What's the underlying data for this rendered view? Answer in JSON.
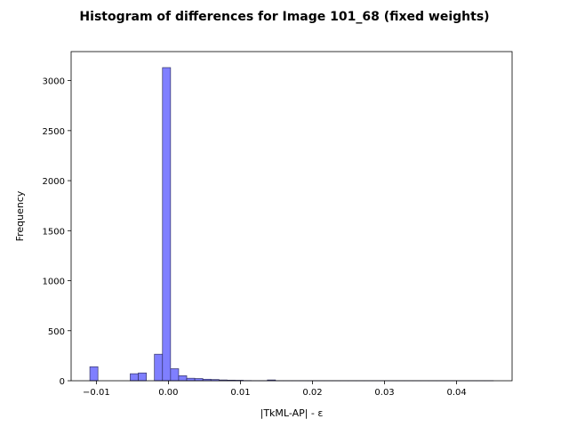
{
  "chart_data": {
    "type": "bar",
    "title": "Histogram of differences for Image 101_68 (fixed weights)",
    "xlabel": "|TkML-AP| - ε",
    "ylabel": "Frequency",
    "xlim": [
      -0.0135,
      0.0477
    ],
    "ylim": [
      0,
      3290
    ],
    "grid": false,
    "xticks": [
      -0.01,
      0.0,
      0.01,
      0.02,
      0.03,
      0.04
    ],
    "xtick_labels": [
      "−0.01",
      "0.00",
      "0.01",
      "0.02",
      "0.03",
      "0.04"
    ],
    "yticks": [
      0,
      500,
      1000,
      1500,
      2000,
      2500,
      3000
    ],
    "ytick_labels": [
      "0",
      "500",
      "1000",
      "1500",
      "2000",
      "2500",
      "3000"
    ],
    "bin_width": 0.00112,
    "bins": [
      {
        "x0": -0.0109,
        "count": 140
      },
      {
        "x0": -0.00978,
        "count": 0
      },
      {
        "x0": -0.00866,
        "count": 0
      },
      {
        "x0": -0.00754,
        "count": 0
      },
      {
        "x0": -0.00642,
        "count": 0
      },
      {
        "x0": -0.0053,
        "count": 70
      },
      {
        "x0": -0.00418,
        "count": 78
      },
      {
        "x0": -0.00306,
        "count": 0
      },
      {
        "x0": -0.00194,
        "count": 265
      },
      {
        "x0": -0.00082,
        "count": 3130
      },
      {
        "x0": 0.0003,
        "count": 120
      },
      {
        "x0": 0.00142,
        "count": 50
      },
      {
        "x0": 0.00254,
        "count": 25
      },
      {
        "x0": 0.00366,
        "count": 22
      },
      {
        "x0": 0.00478,
        "count": 15
      },
      {
        "x0": 0.0059,
        "count": 12
      },
      {
        "x0": 0.00702,
        "count": 8
      },
      {
        "x0": 0.00814,
        "count": 6
      },
      {
        "x0": 0.00926,
        "count": 5
      },
      {
        "x0": 0.01038,
        "count": 2
      },
      {
        "x0": 0.0115,
        "count": 1
      },
      {
        "x0": 0.01262,
        "count": 1
      },
      {
        "x0": 0.01374,
        "count": 8
      },
      {
        "x0": 0.01486,
        "count": 1
      },
      {
        "x0": 0.01598,
        "count": 1
      },
      {
        "x0": 0.0171,
        "count": 1
      },
      {
        "x0": 0.01822,
        "count": 1
      },
      {
        "x0": 0.01934,
        "count": 1
      },
      {
        "x0": 0.02046,
        "count": 1
      },
      {
        "x0": 0.02158,
        "count": 1
      },
      {
        "x0": 0.0227,
        "count": 1
      },
      {
        "x0": 0.02382,
        "count": 1
      },
      {
        "x0": 0.02494,
        "count": 1
      },
      {
        "x0": 0.02606,
        "count": 1
      },
      {
        "x0": 0.02718,
        "count": 1
      },
      {
        "x0": 0.0283,
        "count": 1
      },
      {
        "x0": 0.02942,
        "count": 1
      },
      {
        "x0": 0.03054,
        "count": 1
      },
      {
        "x0": 0.03166,
        "count": 1
      },
      {
        "x0": 0.03278,
        "count": 1
      },
      {
        "x0": 0.0339,
        "count": 1
      },
      {
        "x0": 0.03502,
        "count": 1
      },
      {
        "x0": 0.03614,
        "count": 1
      },
      {
        "x0": 0.03726,
        "count": 1
      },
      {
        "x0": 0.03838,
        "count": 1
      },
      {
        "x0": 0.0395,
        "count": 1
      },
      {
        "x0": 0.04062,
        "count": 1
      },
      {
        "x0": 0.04174,
        "count": 1
      },
      {
        "x0": 0.04286,
        "count": 1
      },
      {
        "x0": 0.04398,
        "count": 1
      }
    ],
    "colors": {
      "bar_fill": "#7f7fff",
      "bar_edge": "#333366",
      "axis": "#000000"
    }
  }
}
